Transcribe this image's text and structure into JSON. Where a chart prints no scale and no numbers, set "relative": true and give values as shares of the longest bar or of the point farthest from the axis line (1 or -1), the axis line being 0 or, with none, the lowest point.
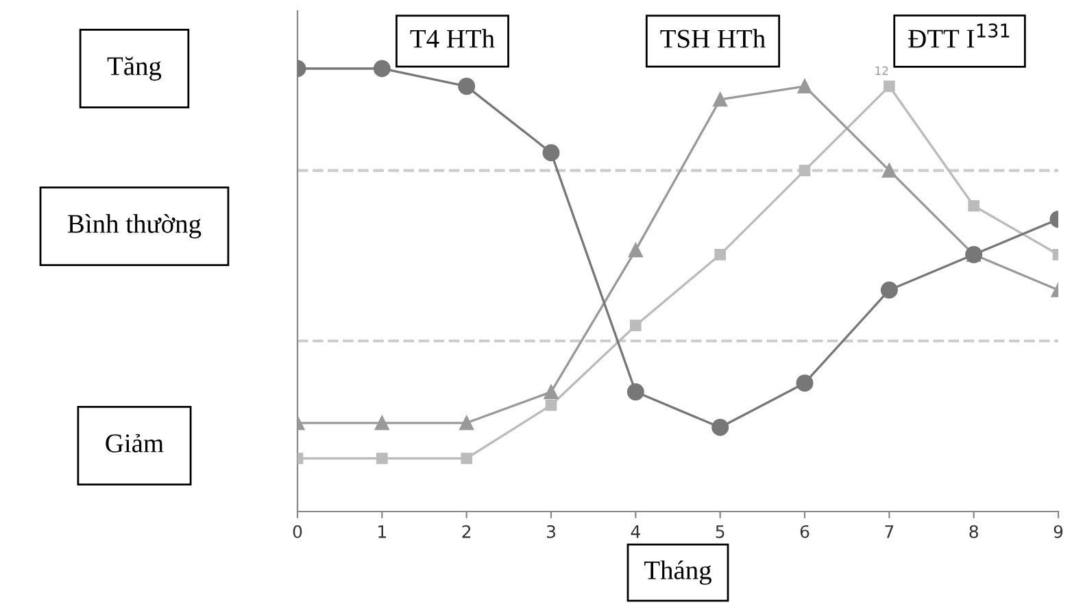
{
  "chart_data": {
    "type": "line",
    "relative": true,
    "xlabel": "Tháng",
    "x": [
      0,
      1,
      2,
      3,
      4,
      5,
      6,
      7,
      8,
      9
    ],
    "xlim": [
      0,
      9
    ],
    "xticks": [
      0,
      1,
      2,
      3,
      4,
      5,
      6,
      7,
      8,
      9
    ],
    "tick_labels": "x",
    "grid": false,
    "legend": false,
    "series": [
      {
        "name": "T4 HTh",
        "color": "#777777",
        "marker": "circle",
        "values": [
          1,
          1,
          0.96,
          0.81,
          0.27,
          0.19,
          0.29,
          0.5,
          0.58,
          0.66
        ]
      },
      {
        "name": "TSH HTh",
        "color": "#999999",
        "marker": "triangle",
        "values": [
          0.2,
          0.2,
          0.2,
          0.27,
          0.59,
          0.93,
          0.96,
          0.77,
          0.58,
          0.5
        ]
      },
      {
        "name": "ĐTT I$^{131}$",
        "color": "#bbbbbb",
        "marker": "square",
        "values": [
          0.12,
          0.12,
          0.12,
          0.24,
          0.42,
          0.58,
          0.77,
          0.96,
          0.69,
          0.58
        ]
      }
    ],
    "ref_lines": [
      {
        "axis": "y",
        "value": 0.77,
        "color": "#cccccc",
        "line_style": "dashed"
      },
      {
        "axis": "y",
        "value": 0.385,
        "color": "#cccccc",
        "line_style": "dashed"
      }
    ],
    "annotations": [
      "Tăng",
      "Bình thường",
      "Giảm",
      {
        "text": "12",
        "x": 7,
        "y": 0.96
      }
    ]
  }
}
